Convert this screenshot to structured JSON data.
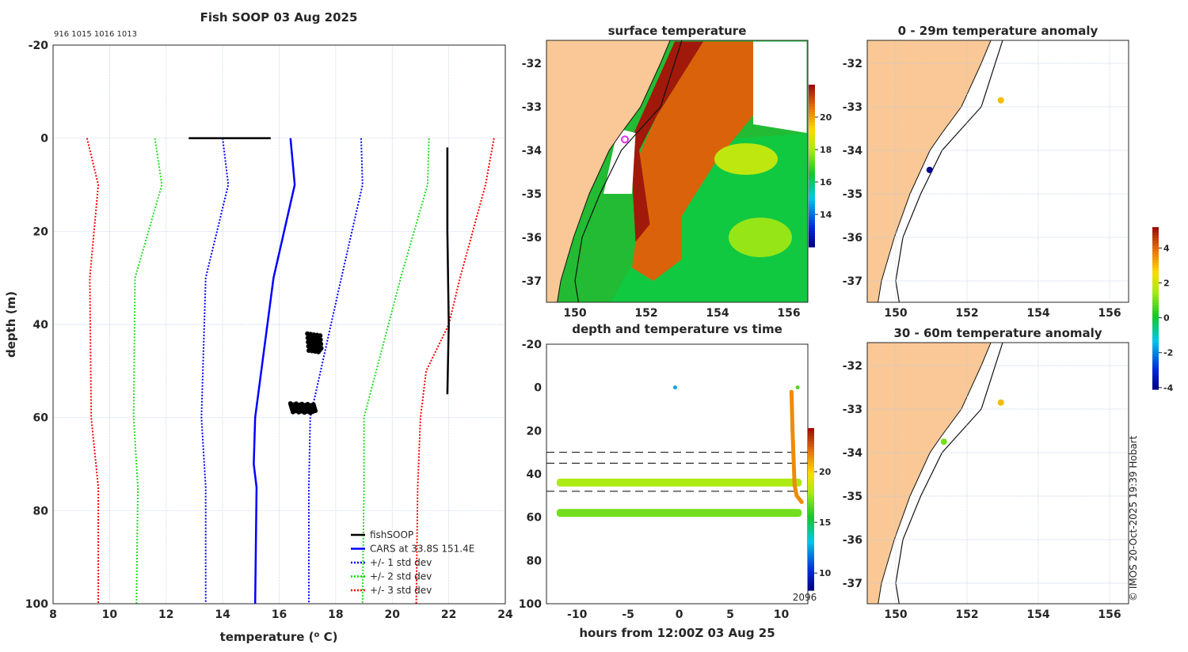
{
  "credit": "© IMOS 20-Oct-2025 19:39 Hobart",
  "chart_data": [
    {
      "id": "profile",
      "type": "line",
      "title": "Fish SOOP 03 Aug 2025",
      "subtitle": "916 1015 1016 1013",
      "xlabel": "temperature (° C)",
      "xlabel_pre": "temperature (",
      "xlabel_sup": "o",
      "xlabel_post": " C)",
      "ylabel": "depth (m)",
      "xlim": [
        8,
        24
      ],
      "ylim": [
        -20,
        100
      ],
      "y_inverted": true,
      "grid": true,
      "xticks": [
        8,
        10,
        12,
        14,
        16,
        18,
        20,
        22,
        24
      ],
      "yticks": [
        -20,
        0,
        20,
        40,
        60,
        80,
        100
      ],
      "legend_position": "bottom-right",
      "legend": [
        {
          "label": "fishSOOP",
          "color": "#000000",
          "style": "solid"
        },
        {
          "label": "CARS at 33.8S 151.4E",
          "color": "#0000ff",
          "style": "solid"
        },
        {
          "label": "+/- 1 std dev",
          "color": "#0000ff",
          "style": "dotted"
        },
        {
          "label": "+/- 2 std dev",
          "color": "#00dd00",
          "style": "dotted"
        },
        {
          "label": "+/- 3 std dev",
          "color": "#ff0000",
          "style": "dotted"
        }
      ],
      "series": [
        {
          "name": "CARS",
          "color": "#0000ff",
          "style": "solid",
          "points": [
            [
              16.4,
              0
            ],
            [
              16.55,
              10
            ],
            [
              15.8,
              30
            ],
            [
              15.15,
              60
            ],
            [
              15.1,
              70
            ],
            [
              15.2,
              75
            ],
            [
              15.15,
              100
            ]
          ]
        },
        {
          "name": "-1 std",
          "color": "#0000ff",
          "style": "dotted",
          "points": [
            [
              14.0,
              0
            ],
            [
              14.2,
              10
            ],
            [
              13.4,
              30
            ],
            [
              13.25,
              60
            ],
            [
              13.4,
              75
            ],
            [
              13.4,
              100
            ]
          ]
        },
        {
          "name": "+1 std",
          "color": "#0000ff",
          "style": "dotted",
          "points": [
            [
              18.9,
              0
            ],
            [
              18.95,
              10
            ],
            [
              18.2,
              30
            ],
            [
              17.1,
              60
            ],
            [
              17.05,
              75
            ],
            [
              17.05,
              100
            ]
          ]
        },
        {
          "name": "-2 std",
          "color": "#22dd22",
          "style": "dotted",
          "points": [
            [
              11.6,
              0
            ],
            [
              11.85,
              10
            ],
            [
              10.9,
              30
            ],
            [
              10.85,
              60
            ],
            [
              11.0,
              75
            ],
            [
              10.95,
              100
            ]
          ]
        },
        {
          "name": "+2 std",
          "color": "#22dd22",
          "style": "dotted",
          "points": [
            [
              21.3,
              0
            ],
            [
              21.25,
              10
            ],
            [
              20.3,
              30
            ],
            [
              19.0,
              60
            ],
            [
              19.0,
              75
            ],
            [
              18.95,
              100
            ]
          ]
        },
        {
          "name": "-3 std",
          "color": "#ff0000",
          "style": "dotted",
          "points": [
            [
              9.2,
              0
            ],
            [
              9.6,
              10
            ],
            [
              9.3,
              30
            ],
            [
              9.35,
              60
            ],
            [
              9.6,
              75
            ],
            [
              9.6,
              100
            ]
          ]
        },
        {
          "name": "+3 std",
          "color": "#ff0000",
          "style": "dotted",
          "points": [
            [
              23.6,
              0
            ],
            [
              23.3,
              10
            ],
            [
              22.4,
              30
            ],
            [
              22.0,
              40
            ],
            [
              21.2,
              50
            ],
            [
              21.0,
              60
            ],
            [
              20.9,
              75
            ],
            [
              20.85,
              100
            ]
          ]
        },
        {
          "name": "fishSOOP surface",
          "color": "#000000",
          "style": "solid",
          "points": [
            [
              12.8,
              0
            ],
            [
              15.7,
              0
            ]
          ]
        },
        {
          "name": "fishSOOP descent",
          "color": "#000000",
          "style": "solid",
          "points": [
            [
              21.95,
              2
            ],
            [
              21.95,
              20
            ],
            [
              22.0,
              40
            ],
            [
              21.95,
              55
            ]
          ]
        },
        {
          "name": "fishSOOP 44m",
          "color": "#000000",
          "style": "cluster",
          "points": [
            [
              17.0,
              42
            ],
            [
              17.5,
              46
            ]
          ]
        },
        {
          "name": "fishSOOP 58m",
          "color": "#000000",
          "style": "cluster",
          "points": [
            [
              16.4,
              57
            ],
            [
              17.3,
              59
            ]
          ]
        }
      ]
    },
    {
      "id": "sst-map",
      "type": "heatmap",
      "title": "surface temperature",
      "xlim": [
        149.2,
        156.5
      ],
      "ylim": [
        -37.5,
        -31.5
      ],
      "xticks": [
        150,
        152,
        154,
        156
      ],
      "yticks": [
        -32,
        -33,
        -34,
        -35,
        -36,
        -37
      ],
      "colorbar": {
        "range": [
          12,
          22
        ],
        "ticks": [
          14,
          16,
          18,
          20
        ]
      },
      "marker": {
        "lon": 151.4,
        "lat": -33.75,
        "color": "#dd33dd"
      }
    },
    {
      "id": "anomaly-0-29",
      "type": "scatter",
      "title": "0 - 29m temperature anomaly",
      "xlim": [
        149.2,
        156.5
      ],
      "ylim": [
        -37.5,
        -31.5
      ],
      "xticks": [
        150,
        152,
        154,
        156
      ],
      "yticks": [
        -32,
        -33,
        -34,
        -35,
        -36,
        -37
      ],
      "points": [
        {
          "lon": 152.95,
          "lat": -32.85,
          "anomaly": 3.0
        },
        {
          "lon": 150.95,
          "lat": -34.45,
          "anomaly": -4.0
        }
      ]
    },
    {
      "id": "anomaly-30-60",
      "type": "scatter",
      "title": "30 - 60m temperature anomaly",
      "xlim": [
        149.2,
        156.5
      ],
      "ylim": [
        -37.5,
        -31.5
      ],
      "xticks": [
        150,
        152,
        154,
        156
      ],
      "yticks": [
        -32,
        -33,
        -34,
        -35,
        -36,
        -37
      ],
      "points": [
        {
          "lon": 152.95,
          "lat": -32.85,
          "anomaly": 3.0
        },
        {
          "lon": 151.35,
          "lat": -33.75,
          "anomaly": 1.0
        }
      ],
      "colorbar": {
        "range": [
          -4.1,
          5.2
        ],
        "ticks": [
          4,
          2,
          0,
          -2,
          -4
        ]
      }
    },
    {
      "id": "depth-time",
      "type": "scatter",
      "title": "depth and temperature vs time",
      "xlabel": "hours from 12:00Z 03 Aug 25",
      "xlim": [
        -13,
        12.6
      ],
      "ylim": [
        -20,
        100
      ],
      "y_inverted": true,
      "xticks": [
        -10,
        -5,
        0,
        5,
        10
      ],
      "yticks": [
        -20,
        0,
        20,
        40,
        60,
        80,
        100
      ],
      "dashed_depths": [
        30,
        35,
        48
      ],
      "bands": [
        {
          "depth": 44,
          "from": -12,
          "to": 12,
          "temp": 18.0
        },
        {
          "depth": 58,
          "from": -12,
          "to": 12,
          "temp": 17.0
        }
      ],
      "points": [
        {
          "hour": -0.4,
          "depth": 0,
          "temp": 12.5
        },
        {
          "hour": 11.6,
          "depth": 0,
          "temp": 16.5
        }
      ],
      "descent": [
        [
          11.0,
          2,
          21.5
        ],
        [
          11.1,
          20,
          21.5
        ],
        [
          11.3,
          45,
          21.5
        ],
        [
          11.5,
          50,
          21.8
        ],
        [
          12.0,
          53,
          22
        ]
      ],
      "colorbar": {
        "range": [
          8.3,
          24.3
        ],
        "ticks": [
          20,
          15,
          10
        ],
        "label": "2096"
      }
    }
  ]
}
